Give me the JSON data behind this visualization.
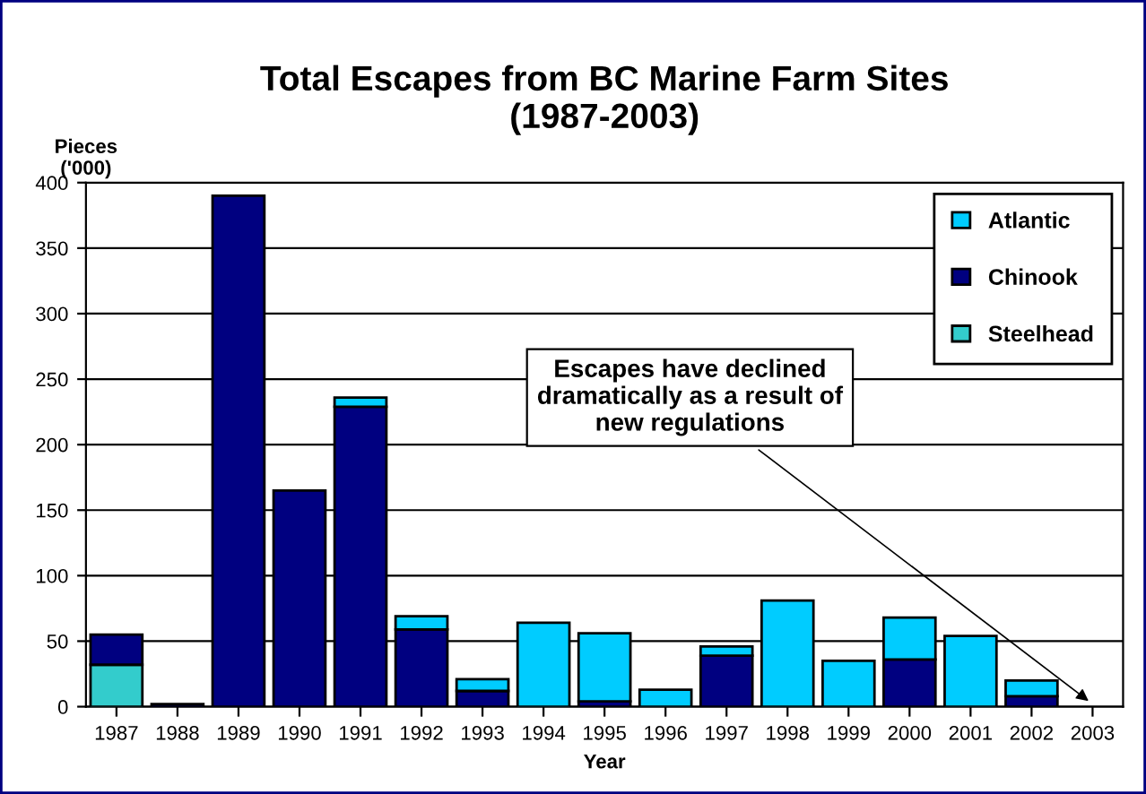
{
  "chart_data": {
    "type": "bar",
    "title": "Total Escapes from BC Marine Farm Sites\n(1987-2003)",
    "xlabel": "Year",
    "ylabel": "Pieces\n('000)",
    "categories": [
      "1987",
      "1988",
      "1989",
      "1990",
      "1991",
      "1992",
      "1993",
      "1994",
      "1995",
      "1996",
      "1997",
      "1998",
      "1999",
      "2000",
      "2001",
      "2002",
      "2003"
    ],
    "stacked": true,
    "series": [
      {
        "name": "Steelhead",
        "color": "#33cccc",
        "values": [
          32,
          0,
          0,
          0,
          0,
          0,
          0,
          0,
          0,
          0,
          0,
          0,
          0,
          0,
          0,
          0,
          0
        ]
      },
      {
        "name": "Chinook",
        "color": "#000080",
        "values": [
          23,
          2,
          390,
          165,
          229,
          59,
          12,
          null,
          4,
          0,
          39,
          null,
          0,
          36,
          0,
          8,
          0
        ]
      },
      {
        "name": "Atlantic",
        "color": "#00ccff",
        "values": [
          0,
          0,
          0,
          0,
          7,
          10,
          9,
          64,
          52,
          13,
          7,
          81,
          35,
          32,
          54,
          12,
          0
        ]
      }
    ],
    "ylim": [
      0,
      400
    ],
    "yticks": [
      0,
      50,
      100,
      150,
      200,
      250,
      300,
      350,
      400
    ],
    "grid": "y",
    "legend": "top right",
    "annotations": [
      {
        "text": "Escapes have declined\ndramatically as a result of\nnew regulations",
        "x": "2003",
        "y": 2
      }
    ]
  }
}
